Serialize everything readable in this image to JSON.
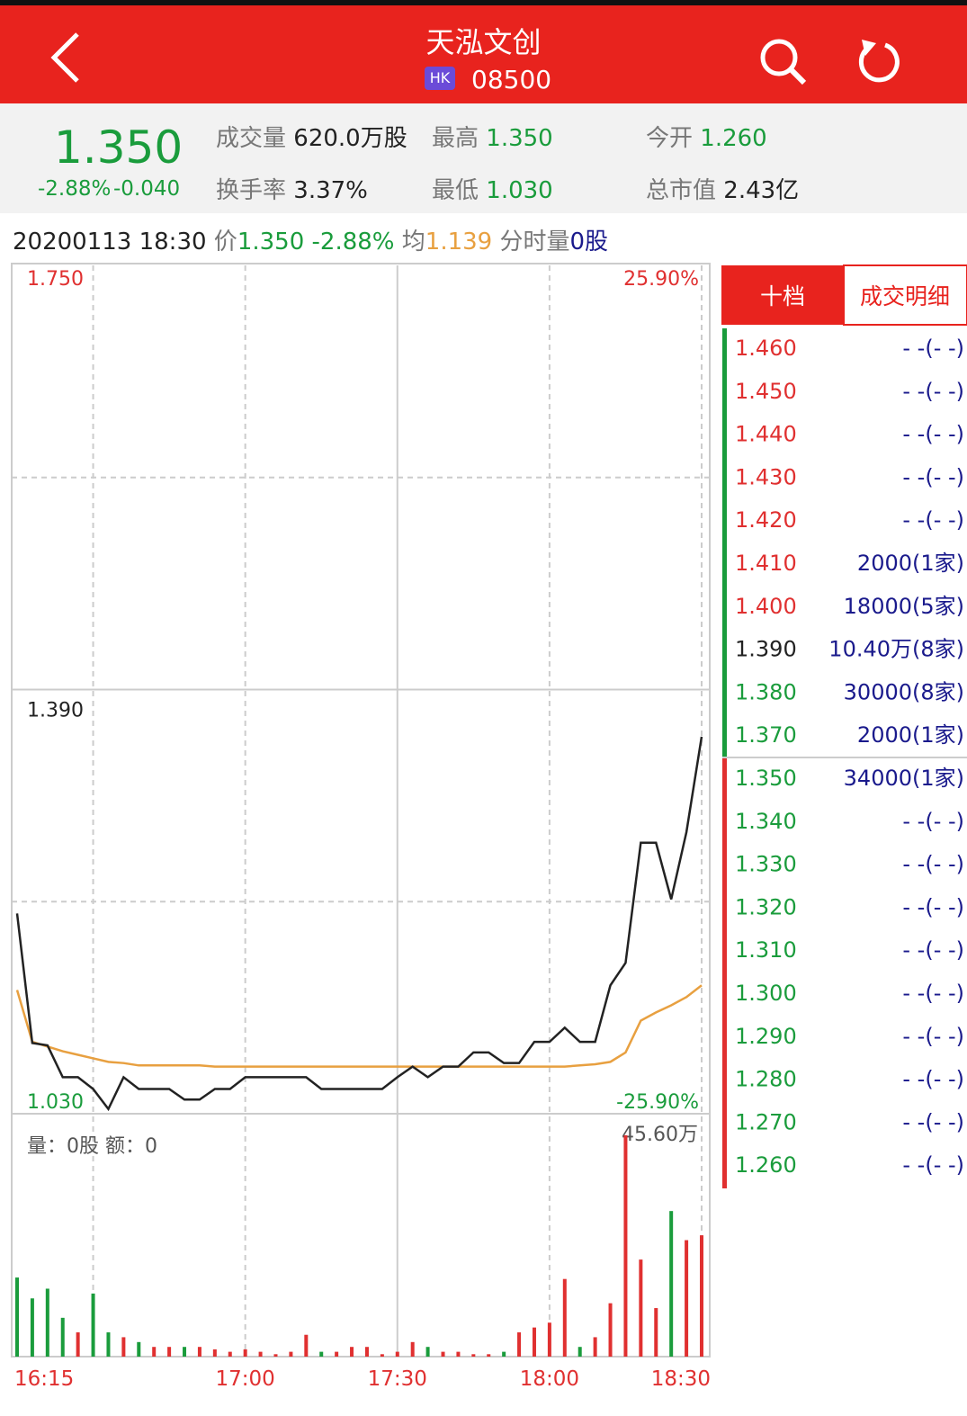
{
  "header": {
    "title": "天泓文创",
    "market": "HK",
    "code": "08500"
  },
  "quote": {
    "price": "1.350",
    "change_pct": "-2.88%",
    "change": "-0.040",
    "stats": [
      [
        "成交量",
        "620.0万股"
      ],
      [
        "最高",
        "1.350"
      ],
      [
        "今开",
        "1.260"
      ],
      [
        "换手率",
        "3.37%"
      ],
      [
        "最低",
        "1.030"
      ],
      [
        "总市值",
        "2.43亿"
      ]
    ]
  },
  "info": {
    "datetime": "20200113 18:30",
    "price_label": "价",
    "price": "1.350",
    "pct": "-2.88%",
    "avg_label": "均",
    "avg": "1.139",
    "vol_label": "分时量",
    "vol": "0股"
  },
  "chart_data": {
    "type": "line",
    "categories": [
      "16:15",
      null,
      null,
      null,
      null,
      null,
      null,
      null,
      null,
      null,
      null,
      null,
      null,
      null,
      null,
      "17:00",
      null,
      null,
      null,
      null,
      null,
      null,
      null,
      null,
      null,
      "17:30",
      null,
      null,
      null,
      null,
      null,
      null,
      null,
      null,
      null,
      "18:00",
      null,
      null,
      null,
      null,
      null,
      null,
      null,
      null,
      null,
      "18:30"
    ],
    "series": [
      {
        "name": "价",
        "color": "#222222",
        "values": [
          1.2,
          1.09,
          1.088,
          1.061,
          1.061,
          1.051,
          1.034,
          1.061,
          1.051,
          1.051,
          1.051,
          1.042,
          1.042,
          1.051,
          1.051,
          1.061,
          1.061,
          1.061,
          1.061,
          1.061,
          1.051,
          1.051,
          1.051,
          1.051,
          1.051,
          1.061,
          1.07,
          1.061,
          1.07,
          1.07,
          1.082,
          1.082,
          1.073,
          1.073,
          1.091,
          1.091,
          1.103,
          1.091,
          1.091,
          1.139,
          1.158,
          1.26,
          1.26,
          1.212,
          1.269,
          1.35
        ]
      },
      {
        "name": "均",
        "color": "#e8a040",
        "values": [
          1.135,
          1.091,
          1.087,
          1.083,
          1.08,
          1.077,
          1.074,
          1.073,
          1.071,
          1.071,
          1.071,
          1.071,
          1.071,
          1.07,
          1.07,
          1.07,
          1.07,
          1.07,
          1.07,
          1.07,
          1.07,
          1.07,
          1.07,
          1.07,
          1.07,
          1.07,
          1.07,
          1.07,
          1.07,
          1.07,
          1.07,
          1.07,
          1.07,
          1.07,
          1.07,
          1.07,
          1.07,
          1.071,
          1.072,
          1.074,
          1.082,
          1.109,
          1.116,
          1.122,
          1.129,
          1.139
        ]
      }
    ],
    "ylim": [
      1.03,
      1.75
    ],
    "yticks": [
      {
        "value": 1.75,
        "label": "1.750"
      },
      {
        "value": 1.39,
        "label": "1.390"
      },
      {
        "value": 1.03,
        "label": "1.030"
      }
    ],
    "y2lim": [
      -25.9,
      25.9
    ],
    "y2ticks": [
      {
        "value": 25.9,
        "label": "25.90%"
      },
      {
        "value": -25.9,
        "label": "-25.90%"
      }
    ],
    "volume": {
      "label": "量：0股 额：0",
      "max": {
        "value": 45.6,
        "label": "45.60万"
      },
      "values": [
        16.3,
        12,
        14,
        8,
        5,
        13,
        5,
        4,
        3,
        2,
        2,
        2,
        2,
        1.5,
        1,
        1.5,
        1,
        0.5,
        1,
        4.5,
        1,
        1,
        2,
        2,
        0.5,
        1,
        3,
        2,
        1,
        1,
        0.5,
        0.5,
        1,
        5,
        6,
        7,
        16,
        2,
        4,
        11,
        45.6,
        20,
        10,
        30,
        24,
        25
      ]
    }
  },
  "order_book": {
    "tabs": [
      "十档",
      "成交明细"
    ],
    "rows": [
      [
        "1.460",
        "- -(- -)"
      ],
      [
        "1.450",
        "- -(- -)"
      ],
      [
        "1.440",
        "- -(- -)"
      ],
      [
        "1.430",
        "- -(- -)"
      ],
      [
        "1.420",
        "- -(- -)"
      ],
      [
        "1.410",
        "2000(1家)"
      ],
      [
        "1.400",
        "18000(5家)"
      ],
      [
        "1.390",
        "10.40万(8家)"
      ],
      [
        "1.380",
        "30000(8家)"
      ],
      [
        "1.370",
        "2000(1家)"
      ],
      [
        "1.350",
        "34000(1家)"
      ],
      [
        "1.340",
        "- -(- -)"
      ],
      [
        "1.330",
        "- -(- -)"
      ],
      [
        "1.320",
        "- -(- -)"
      ],
      [
        "1.310",
        "- -(- -)"
      ],
      [
        "1.300",
        "- -(- -)"
      ],
      [
        "1.290",
        "- -(- -)"
      ],
      [
        "1.280",
        "- -(- -)"
      ],
      [
        "1.270",
        "- -(- -)"
      ],
      [
        "1.260",
        "- -(- -)"
      ]
    ]
  }
}
